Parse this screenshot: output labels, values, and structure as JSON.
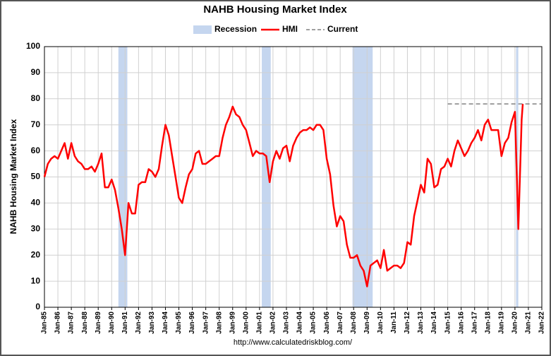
{
  "chart_data": {
    "type": "line",
    "title": "NAHB Housing Market Index",
    "y_label": "NAHB Housing Market Index",
    "source": "http://www.calculatedriskblog.com/",
    "x": [
      "Jan-85",
      "Apr-85",
      "Jul-85",
      "Oct-85",
      "Jan-86",
      "Apr-86",
      "Jul-86",
      "Oct-86",
      "Jan-87",
      "Apr-87",
      "Jul-87",
      "Oct-87",
      "Jan-88",
      "Apr-88",
      "Jul-88",
      "Oct-88",
      "Jan-89",
      "Apr-89",
      "Jul-89",
      "Oct-89",
      "Jan-90",
      "Apr-90",
      "Jul-90",
      "Oct-90",
      "Jan-91",
      "Apr-91",
      "Jul-91",
      "Oct-91",
      "Jan-92",
      "Apr-92",
      "Jul-92",
      "Oct-92",
      "Jan-93",
      "Apr-93",
      "Jul-93",
      "Oct-93",
      "Jan-94",
      "Apr-94",
      "Jul-94",
      "Oct-94",
      "Jan-95",
      "Apr-95",
      "Jul-95",
      "Oct-95",
      "Jan-96",
      "Apr-96",
      "Jul-96",
      "Oct-96",
      "Jan-97",
      "Apr-97",
      "Jul-97",
      "Oct-97",
      "Jan-98",
      "Apr-98",
      "Jul-98",
      "Oct-98",
      "Jan-99",
      "Apr-99",
      "Jul-99",
      "Oct-99",
      "Jan-00",
      "Apr-00",
      "Jul-00",
      "Oct-00",
      "Jan-01",
      "Apr-01",
      "Jul-01",
      "Oct-01",
      "Jan-02",
      "Apr-02",
      "Jul-02",
      "Oct-02",
      "Jan-03",
      "Apr-03",
      "Jul-03",
      "Oct-03",
      "Jan-04",
      "Apr-04",
      "Jul-04",
      "Oct-04",
      "Jan-05",
      "Apr-05",
      "Jul-05",
      "Oct-05",
      "Jan-06",
      "Apr-06",
      "Jul-06",
      "Oct-06",
      "Jan-07",
      "Apr-07",
      "Jul-07",
      "Oct-07",
      "Jan-08",
      "Apr-08",
      "Jul-08",
      "Oct-08",
      "Jan-09",
      "Apr-09",
      "Jul-09",
      "Oct-09",
      "Jan-10",
      "Apr-10",
      "Jul-10",
      "Oct-10",
      "Jan-11",
      "Apr-11",
      "Jul-11",
      "Oct-11",
      "Jan-12",
      "Apr-12",
      "Jul-12",
      "Oct-12",
      "Jan-13",
      "Apr-13",
      "Jul-13",
      "Oct-13",
      "Jan-14",
      "Apr-14",
      "Jul-14",
      "Oct-14",
      "Jan-15",
      "Apr-15",
      "Jul-15",
      "Oct-15",
      "Jan-16",
      "Apr-16",
      "Jul-16",
      "Oct-16",
      "Jan-17",
      "Apr-17",
      "Jul-17",
      "Oct-17",
      "Jan-18",
      "Apr-18",
      "Jul-18",
      "Oct-18",
      "Jan-19",
      "Apr-19",
      "Jul-19",
      "Oct-19",
      "Jan-20",
      "Apr-20",
      "Jul-20",
      "Aug-20"
    ],
    "series": [
      {
        "name": "HMI",
        "color": "#ff0000",
        "values": [
          50,
          55,
          57,
          58,
          57,
          60,
          63,
          57,
          63,
          58,
          56,
          55,
          53,
          53,
          54,
          52,
          55,
          59,
          46,
          46,
          49,
          45,
          38,
          30,
          20,
          40,
          36,
          36,
          47,
          48,
          48,
          53,
          52,
          50,
          53,
          62,
          70,
          66,
          58,
          50,
          42,
          40,
          46,
          51,
          53,
          59,
          60,
          55,
          55,
          56,
          57,
          58,
          58,
          65,
          70,
          73,
          77,
          74,
          73,
          70,
          68,
          63,
          58,
          60,
          59,
          59,
          58,
          48,
          56,
          60,
          57,
          61,
          62,
          56,
          62,
          65,
          67,
          68,
          68,
          69,
          68,
          70,
          70,
          68,
          57,
          51,
          39,
          31,
          35,
          33,
          24,
          19,
          19,
          20,
          16,
          14,
          8,
          16,
          17,
          18,
          15,
          22,
          14,
          15,
          16,
          16,
          15,
          17,
          25,
          24,
          35,
          41,
          47,
          44,
          57,
          55,
          46,
          47,
          53,
          54,
          57,
          54,
          60,
          64,
          61,
          58,
          60,
          63,
          65,
          68,
          64,
          70,
          72,
          68,
          68,
          68,
          58,
          63,
          65,
          71,
          75,
          30,
          72,
          78
        ]
      }
    ],
    "recession": {
      "name": "Recession",
      "color": "#c5d6ef",
      "periods": [
        [
          "Jul-90",
          "Mar-91"
        ],
        [
          "Mar-01",
          "Nov-01"
        ],
        [
          "Dec-07",
          "Jun-09"
        ],
        [
          "Feb-20",
          "Apr-20"
        ]
      ]
    },
    "current": {
      "name": "Current",
      "color": "#808080",
      "value": 78,
      "x": [
        "Jan-15",
        "Jan-22"
      ]
    },
    "xlim": [
      "Jan-85",
      "Jan-22"
    ],
    "xticks": [
      "Jan-85",
      "Jan-86",
      "Jan-87",
      "Jan-88",
      "Jan-89",
      "Jan-90",
      "Jan-91",
      "Jan-92",
      "Jan-93",
      "Jan-94",
      "Jan-95",
      "Jan-96",
      "Jan-97",
      "Jan-98",
      "Jan-99",
      "Jan-00",
      "Jan-01",
      "Jan-02",
      "Jan-03",
      "Jan-04",
      "Jan-05",
      "Jan-06",
      "Jan-07",
      "Jan-08",
      "Jan-09",
      "Jan-10",
      "Jan-11",
      "Jan-12",
      "Jan-13",
      "Jan-14",
      "Jan-15",
      "Jan-16",
      "Jan-17",
      "Jan-18",
      "Jan-19",
      "Jan-20",
      "Jan-21",
      "Jan-22"
    ],
    "ylim": [
      0,
      100
    ],
    "yticks": [
      0,
      10,
      20,
      30,
      40,
      50,
      60,
      70,
      80,
      90,
      100
    ],
    "grid": true
  }
}
